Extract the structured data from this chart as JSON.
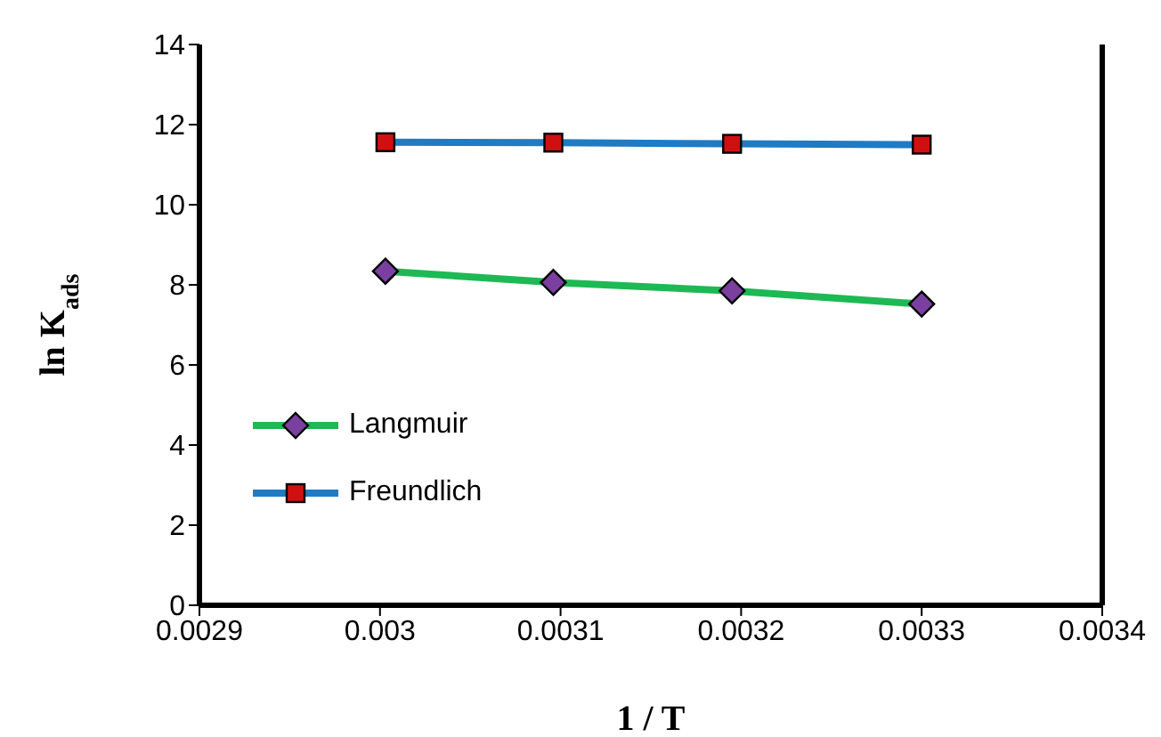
{
  "chart_data": {
    "type": "line",
    "xlabel": "1 / T",
    "ylabel": "ln K$_{ads}$",
    "xlim": [
      0.0029,
      0.0034
    ],
    "xticks": [
      0.0029,
      0.003,
      0.0031,
      0.0032,
      0.0033,
      0.0034
    ],
    "ylim": [
      0,
      14
    ],
    "yticks": [
      0,
      2,
      4,
      6,
      8,
      10,
      12,
      14
    ],
    "grid": false,
    "legend": "bottom left",
    "series": [
      {
        "name": "Langmuir",
        "color": "#1db954",
        "marker": "diamond",
        "colors": [
          "#7b3fa0",
          "#7b3fa0",
          "#7b3fa0",
          "#7b3fa0"
        ],
        "x": [
          0.003003,
          0.003096,
          0.003195,
          0.0033
        ],
        "values": [
          8.34,
          8.06,
          7.85,
          7.52
        ]
      },
      {
        "name": "Freundlich",
        "color": "#1f7bc4",
        "marker": "square",
        "colors": [
          "#d01010",
          "#d01010",
          "#d01010",
          "#d01010"
        ],
        "x": [
          0.003003,
          0.003096,
          0.003195,
          0.0033
        ],
        "values": [
          11.56,
          11.55,
          11.52,
          11.5
        ]
      }
    ]
  }
}
